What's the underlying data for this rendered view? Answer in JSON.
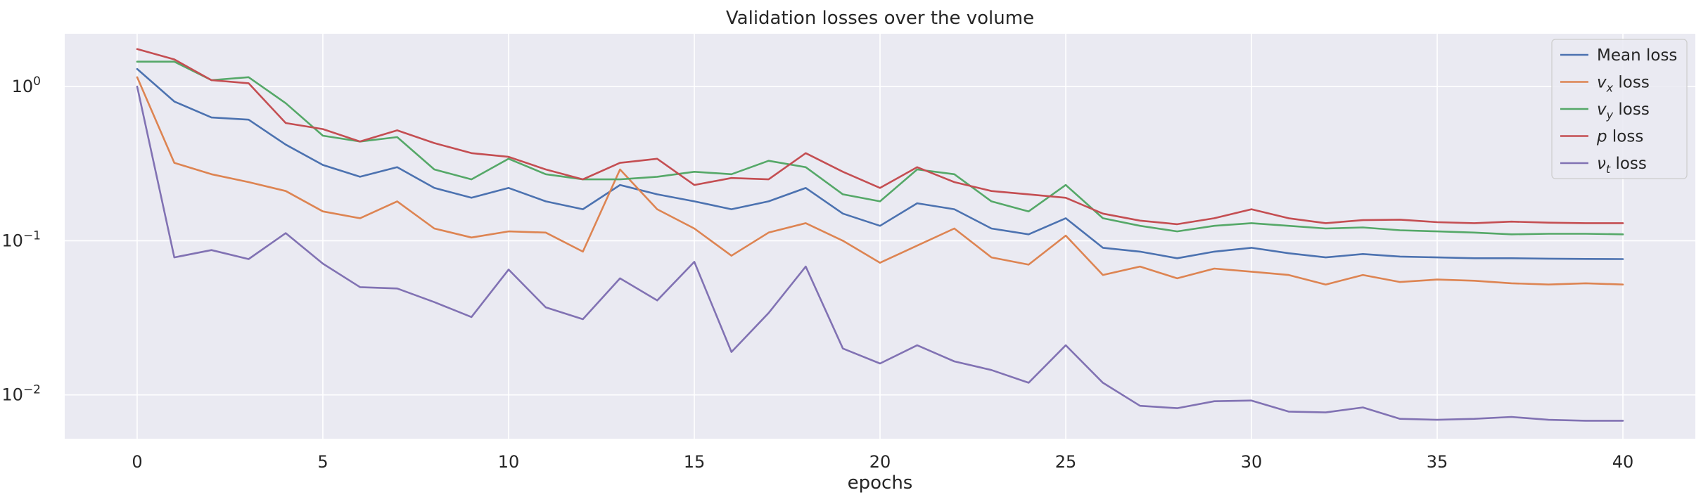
{
  "chart_data": {
    "type": "line",
    "title": "Validation losses over the volume",
    "xlabel": "epochs",
    "ylabel": "",
    "yscale": "log",
    "xlim": [
      -1.95,
      41.95
    ],
    "ylim": [
      0.0052,
      2.2
    ],
    "xticks": [
      0,
      5,
      10,
      15,
      20,
      25,
      30,
      35,
      40
    ],
    "yticks": [
      {
        "value": 0.01,
        "base": "10",
        "exp": "−2"
      },
      {
        "value": 0.1,
        "base": "10",
        "exp": "−1"
      },
      {
        "value": 1,
        "base": "10",
        "exp": "0"
      }
    ],
    "grid": true,
    "legend_position": "top-right",
    "x": [
      0,
      1,
      2,
      3,
      4,
      5,
      6,
      7,
      8,
      9,
      10,
      11,
      12,
      13,
      14,
      15,
      16,
      17,
      18,
      19,
      20,
      21,
      22,
      23,
      24,
      25,
      26,
      27,
      28,
      29,
      30,
      31,
      32,
      33,
      34,
      35,
      36,
      37,
      38,
      39,
      40
    ],
    "series": [
      {
        "name": "Mean loss",
        "legend_main": "Mean loss",
        "legend_sub": "",
        "legend_rest": "",
        "color": "#4c72b0",
        "values": [
          1.3,
          0.8,
          0.63,
          0.61,
          0.42,
          0.31,
          0.26,
          0.3,
          0.22,
          0.19,
          0.22,
          0.18,
          0.16,
          0.23,
          0.2,
          0.18,
          0.16,
          0.18,
          0.22,
          0.15,
          0.125,
          0.175,
          0.16,
          0.12,
          0.11,
          0.14,
          0.09,
          0.085,
          0.077,
          0.085,
          0.09,
          0.083,
          0.078,
          0.082,
          0.079,
          0.078,
          0.077,
          0.077,
          0.0765,
          0.0762,
          0.076
        ]
      },
      {
        "name": "v_x loss",
        "legend_main": "v",
        "legend_sub": "x",
        "legend_rest": " loss",
        "color": "#dd8452",
        "values": [
          1.15,
          0.32,
          0.27,
          0.24,
          0.21,
          0.155,
          0.14,
          0.18,
          0.12,
          0.105,
          0.115,
          0.113,
          0.085,
          0.29,
          0.16,
          0.12,
          0.08,
          0.113,
          0.13,
          0.1,
          0.072,
          0.093,
          0.12,
          0.078,
          0.07,
          0.108,
          0.06,
          0.068,
          0.057,
          0.066,
          0.063,
          0.06,
          0.052,
          0.06,
          0.054,
          0.056,
          0.055,
          0.053,
          0.052,
          0.053,
          0.052
        ]
      },
      {
        "name": "v_y loss",
        "legend_main": "v",
        "legend_sub": "y",
        "legend_rest": " loss",
        "color": "#55a868",
        "values": [
          1.45,
          1.45,
          1.1,
          1.15,
          0.78,
          0.48,
          0.44,
          0.47,
          0.29,
          0.25,
          0.34,
          0.27,
          0.25,
          0.25,
          0.26,
          0.28,
          0.27,
          0.33,
          0.3,
          0.2,
          0.18,
          0.29,
          0.27,
          0.18,
          0.155,
          0.23,
          0.14,
          0.125,
          0.115,
          0.125,
          0.13,
          0.125,
          0.12,
          0.122,
          0.117,
          0.115,
          0.113,
          0.11,
          0.111,
          0.111,
          0.11
        ]
      },
      {
        "name": "p loss",
        "legend_main": "p",
        "legend_sub": "",
        "legend_rest": " loss",
        "color": "#c44e52",
        "values": [
          1.75,
          1.5,
          1.1,
          1.05,
          0.58,
          0.53,
          0.44,
          0.52,
          0.43,
          0.37,
          0.35,
          0.29,
          0.25,
          0.32,
          0.34,
          0.23,
          0.255,
          0.25,
          0.37,
          0.28,
          0.22,
          0.3,
          0.24,
          0.21,
          0.2,
          0.19,
          0.15,
          0.135,
          0.128,
          0.14,
          0.16,
          0.14,
          0.13,
          0.136,
          0.137,
          0.132,
          0.13,
          0.133,
          0.131,
          0.13,
          0.13
        ]
      },
      {
        "name": "ν_t loss",
        "legend_main": "ν",
        "legend_sub": "t",
        "legend_rest": " loss",
        "color": "#8172b3",
        "values": [
          1.0,
          0.078,
          0.087,
          0.076,
          0.112,
          0.071,
          0.05,
          0.049,
          0.04,
          0.032,
          0.065,
          0.037,
          0.031,
          0.057,
          0.041,
          0.073,
          0.019,
          0.034,
          0.068,
          0.02,
          0.016,
          0.021,
          0.0165,
          0.0145,
          0.012,
          0.021,
          0.012,
          0.0085,
          0.0082,
          0.0091,
          0.0092,
          0.0078,
          0.0077,
          0.0083,
          0.007,
          0.0069,
          0.007,
          0.0072,
          0.0069,
          0.0068,
          0.0068
        ]
      }
    ]
  }
}
